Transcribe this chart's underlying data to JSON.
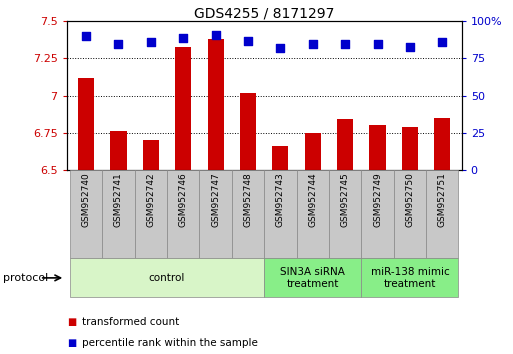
{
  "title": "GDS4255 / 8171297",
  "samples": [
    "GSM952740",
    "GSM952741",
    "GSM952742",
    "GSM952746",
    "GSM952747",
    "GSM952748",
    "GSM952743",
    "GSM952744",
    "GSM952745",
    "GSM952749",
    "GSM952750",
    "GSM952751"
  ],
  "transformed_counts": [
    7.12,
    6.76,
    6.7,
    7.33,
    7.38,
    7.02,
    6.66,
    6.75,
    6.84,
    6.8,
    6.79,
    6.85
  ],
  "percentile_ranks": [
    90,
    85,
    86,
    89,
    91,
    87,
    82,
    85,
    85,
    85,
    83,
    86
  ],
  "ylim_left": [
    6.5,
    7.5
  ],
  "ylim_right": [
    0,
    100
  ],
  "yticks_left": [
    6.5,
    6.75,
    7.0,
    7.25,
    7.5
  ],
  "yticks_right": [
    0,
    25,
    50,
    75,
    100
  ],
  "groups": [
    {
      "label": "control",
      "start": 0,
      "end": 6,
      "color": "#d8f5c8"
    },
    {
      "label": "SIN3A siRNA\ntreatment",
      "start": 6,
      "end": 9,
      "color": "#88ee88"
    },
    {
      "label": "miR-138 mimic\ntreatment",
      "start": 9,
      "end": 12,
      "color": "#88ee88"
    }
  ],
  "bar_color": "#cc0000",
  "dot_color": "#0000cc",
  "bar_width": 0.5,
  "dot_size": 35,
  "legend_items": [
    {
      "label": "transformed count",
      "color": "#cc0000"
    },
    {
      "label": "percentile rank within the sample",
      "color": "#0000cc"
    }
  ],
  "protocol_label": "protocol",
  "background_color": "#ffffff",
  "label_bg_color": "#c8c8c8"
}
